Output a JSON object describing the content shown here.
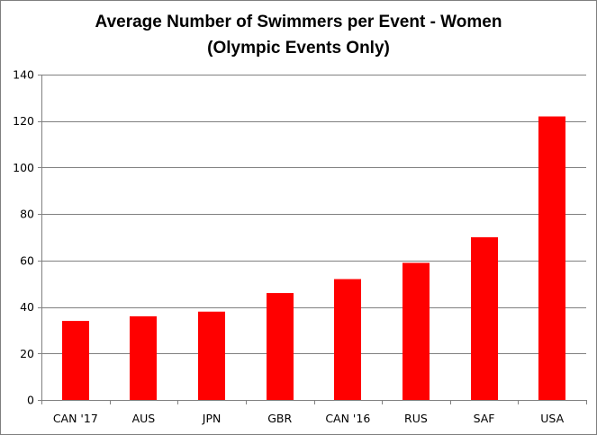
{
  "chart_data": {
    "type": "bar",
    "title_line1": "Average Number of Swimmers per Event - Women",
    "title_line2": "(Olympic Events Only)",
    "categories": [
      "CAN '17",
      "AUS",
      "JPN",
      "GBR",
      "CAN '16",
      "RUS",
      "SAF",
      "USA"
    ],
    "values": [
      34,
      36,
      38,
      46,
      52,
      59,
      70,
      122
    ],
    "ylim": [
      0,
      140
    ],
    "yticks": [
      "0",
      "20",
      "40",
      "60",
      "80",
      "100",
      "120",
      "140"
    ],
    "xlabel": "",
    "ylabel": "",
    "grid": true,
    "legend": "none",
    "bar_color": "#ff0000",
    "grid_color": "#808080"
  }
}
